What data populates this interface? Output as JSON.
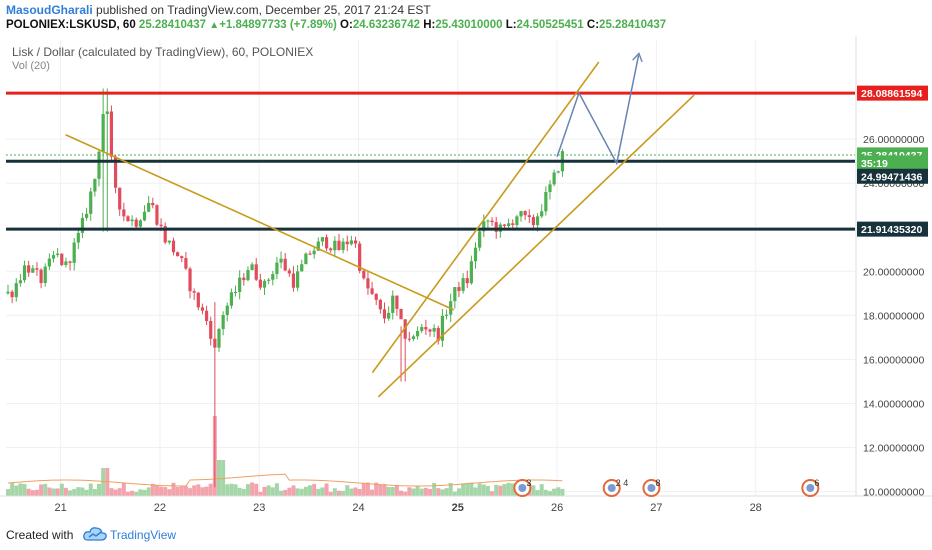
{
  "header": {
    "author": "MasoudGharali",
    "published": " published on TradingView.com, December 25, 2017 21:24 EST",
    "symbol": "POLONIEX:LSKUSD, 60",
    "last": "25.28410437",
    "change": "+1.84897733 (+7.89%)",
    "o_label": "O:",
    "o": "24.63236742",
    "h_label": "H:",
    "h": "25.43010000",
    "l_label": "L:",
    "l": "24.50525451",
    "c_label": "C:",
    "c": "25.28410437"
  },
  "footer": {
    "created_with": "Created with",
    "brand": "TradingView"
  },
  "colors": {
    "up": "#4caf50",
    "down": "#e24b5b",
    "resistance_red": "#e8201d",
    "level_dark": "#17323a",
    "trend": "#c99a1b",
    "projection": "#6b82b4",
    "vol_up": "#a5d6a7",
    "vol_down": "#f4a3ad",
    "vol_ma": "#f0a060"
  },
  "chart_data": {
    "type": "candlestick",
    "title": "Lisk / Dollar (calculated by TradingView), 60, POLONIEX",
    "indicator": "Vol (20)",
    "ylim": [
      9.8,
      30.5
    ],
    "xlim": [
      20.45,
      29.0
    ],
    "y_ticks": [
      {
        "value": 26,
        "label": "26.00000000"
      },
      {
        "value": 24,
        "label": "24.00000000"
      },
      {
        "value": 20,
        "label": "20.00000000"
      },
      {
        "value": 18,
        "label": "18.00000000"
      },
      {
        "value": 16,
        "label": "16.00000000"
      },
      {
        "value": 14,
        "label": "14.00000000"
      },
      {
        "value": 12,
        "label": "12.00000000"
      },
      {
        "value": 10,
        "label": "10.00000000"
      }
    ],
    "x_ticks": [
      {
        "value": 21,
        "label": "21"
      },
      {
        "value": 22,
        "label": "22"
      },
      {
        "value": 23,
        "label": "23"
      },
      {
        "value": 24,
        "label": "24"
      },
      {
        "value": 25,
        "label": "25",
        "bold": true
      },
      {
        "value": 26,
        "label": "26"
      },
      {
        "value": 27,
        "label": "27"
      },
      {
        "value": 28,
        "label": "28"
      }
    ],
    "price_tags": [
      {
        "value": 28.08861594,
        "label": "28.08861594",
        "color": "#e8201d"
      },
      {
        "value": 25.28410437,
        "label": "25.28410437",
        "color": "#4caf50"
      },
      {
        "value": 24.92,
        "label": "35:19",
        "color": "#4caf50"
      },
      {
        "value": 24.99471436,
        "label": "24.99471436",
        "color": "#17323a",
        "offset": 1
      },
      {
        "value": 21.9143532,
        "label": "21.91435320",
        "color": "#17323a"
      }
    ],
    "horizontal_levels": [
      {
        "value": 28.08861594,
        "color": "#e8201d",
        "width": 3
      },
      {
        "value": 24.99471436,
        "color": "#17323a",
        "width": 3
      },
      {
        "value": 21.9143532,
        "color": "#17323a",
        "width": 3
      }
    ],
    "trendlines": [
      {
        "x1": 21.05,
        "y1": 26.2,
        "x2": 24.96,
        "y2": 18.25
      },
      {
        "x1": 24.14,
        "y1": 15.4,
        "x2": 26.42,
        "y2": 29.5
      },
      {
        "x1": 24.2,
        "y1": 14.3,
        "x2": 27.38,
        "y2": 28.0
      }
    ],
    "projection": [
      {
        "x": 26.0,
        "y": 25.2
      },
      {
        "x": 26.22,
        "y": 28.1
      },
      {
        "x": 26.6,
        "y": 24.9
      },
      {
        "x": 26.82,
        "y": 29.8
      }
    ],
    "keypoints": [
      {
        "x": 20.5,
        "y": 19.0
      },
      {
        "x": 20.65,
        "y": 20.3
      },
      {
        "x": 20.8,
        "y": 19.6
      },
      {
        "x": 20.95,
        "y": 20.8
      },
      {
        "x": 21.05,
        "y": 20.2
      },
      {
        "x": 21.2,
        "y": 21.8
      },
      {
        "x": 21.35,
        "y": 24.3
      },
      {
        "x": 21.45,
        "y": 28.0
      },
      {
        "x": 21.52,
        "y": 24.5
      },
      {
        "x": 21.62,
        "y": 22.6
      },
      {
        "x": 21.75,
        "y": 22.2
      },
      {
        "x": 21.9,
        "y": 23.2
      },
      {
        "x": 22.05,
        "y": 21.5
      },
      {
        "x": 22.2,
        "y": 20.6
      },
      {
        "x": 22.35,
        "y": 18.8
      },
      {
        "x": 22.5,
        "y": 17.5
      },
      {
        "x": 22.55,
        "y": 16.3
      },
      {
        "x": 22.62,
        "y": 18.0
      },
      {
        "x": 22.75,
        "y": 19.0
      },
      {
        "x": 22.9,
        "y": 20.3
      },
      {
        "x": 23.05,
        "y": 19.3
      },
      {
        "x": 23.2,
        "y": 20.6
      },
      {
        "x": 23.35,
        "y": 19.5
      },
      {
        "x": 23.5,
        "y": 20.8
      },
      {
        "x": 23.65,
        "y": 21.4
      },
      {
        "x": 23.8,
        "y": 21.0
      },
      {
        "x": 23.95,
        "y": 21.6
      },
      {
        "x": 24.05,
        "y": 19.5
      },
      {
        "x": 24.15,
        "y": 18.8
      },
      {
        "x": 24.25,
        "y": 17.8
      },
      {
        "x": 24.35,
        "y": 18.7
      },
      {
        "x": 24.45,
        "y": 17.2
      },
      {
        "x": 24.55,
        "y": 16.9
      },
      {
        "x": 24.65,
        "y": 17.6
      },
      {
        "x": 24.8,
        "y": 17.1
      },
      {
        "x": 24.9,
        "y": 18.4
      },
      {
        "x": 25.0,
        "y": 19.3
      },
      {
        "x": 25.1,
        "y": 19.6
      },
      {
        "x": 25.2,
        "y": 21.6
      },
      {
        "x": 25.3,
        "y": 22.3
      },
      {
        "x": 25.45,
        "y": 21.8
      },
      {
        "x": 25.6,
        "y": 22.6
      },
      {
        "x": 25.75,
        "y": 22.1
      },
      {
        "x": 25.85,
        "y": 23.0
      },
      {
        "x": 25.95,
        "y": 24.0
      },
      {
        "x": 26.05,
        "y": 25.28
      }
    ],
    "spikes": [
      {
        "x": 21.45,
        "high": 28.3,
        "low": 21.8
      },
      {
        "x": 22.55,
        "high": 18.6,
        "low": 10.2
      },
      {
        "x": 24.45,
        "high": 17.5,
        "low": 15.0
      }
    ],
    "volume_spikes": [
      {
        "x": 22.55,
        "value": 1.0
      },
      {
        "x": 22.62,
        "value": 0.45
      },
      {
        "x": 21.45,
        "value": 0.35
      }
    ],
    "events": [
      {
        "x": 25.65,
        "label": "3"
      },
      {
        "x": 26.55,
        "label": "2 4"
      },
      {
        "x": 26.95,
        "label": "8"
      },
      {
        "x": 28.55,
        "label": "6"
      }
    ]
  }
}
